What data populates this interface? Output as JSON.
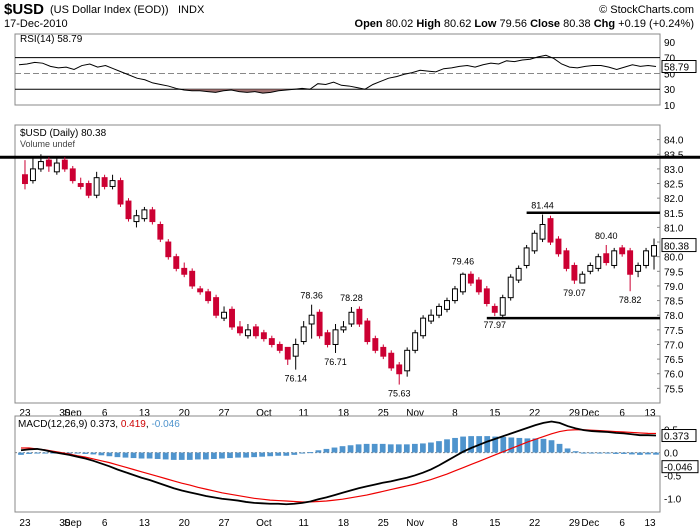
{
  "header": {
    "symbol": "$USD",
    "name": "(US Dollar Index (EOD))",
    "exchange": "INDX",
    "date": "17-Dec-2010",
    "copyright": "© StockCharts.com",
    "quote": {
      "open_label": "Open",
      "open": "80.02",
      "high_label": "High",
      "high": "80.62",
      "low_label": "Low",
      "low": "79.56",
      "close_label": "Close",
      "close": "80.38",
      "chg_label": "Chg",
      "chg": "+0.19 (+0.24%)"
    }
  },
  "colors": {
    "up": "#000000",
    "down": "#cc0033",
    "rsi_fill": "#a07070",
    "macd_line": "#000000",
    "signal_line": "#ee0000",
    "hist": "#4f94cd"
  },
  "chart_data": [
    {
      "type": "line",
      "title": "RSI(14) 58.79",
      "indicator": "RSI(14)",
      "last_value": "58.79",
      "ylim": [
        10,
        100
      ],
      "ticks": [
        "90",
        "70",
        "50",
        "30",
        "10"
      ],
      "levels": [
        70,
        30
      ],
      "values": [
        61,
        62,
        64,
        63,
        59,
        57,
        58,
        55,
        60,
        62,
        58,
        60,
        56,
        52,
        48,
        44,
        42,
        38,
        36,
        34,
        31,
        29,
        28,
        28,
        27,
        26,
        28,
        29,
        27,
        26,
        27,
        25,
        26,
        28,
        29,
        30,
        31,
        30,
        37,
        36,
        39,
        35,
        34,
        32,
        30,
        36,
        40,
        44,
        46,
        49,
        51,
        54,
        53,
        52,
        56,
        57,
        59,
        60,
        58,
        61,
        63,
        62,
        66,
        65,
        67,
        68,
        71,
        73,
        69,
        62,
        58,
        57,
        59,
        60,
        60,
        58,
        55,
        58,
        61,
        59,
        60,
        58.79
      ],
      "last_label": "58.79"
    },
    {
      "type": "candlestick",
      "title": "$USD (Daily) 80.38",
      "subtitle": "Volume undef",
      "ylim": [
        75,
        84.5
      ],
      "y_ticks": [
        84.0,
        83.5,
        83.0,
        82.5,
        82.0,
        81.5,
        81.0,
        80.5,
        80.0,
        79.5,
        79.0,
        78.5,
        78.0,
        77.5,
        77.0,
        76.5,
        76.0,
        75.5
      ],
      "x_ticks": [
        "23",
        "30",
        "Sep",
        "6",
        "13",
        "20",
        "27",
        "Oct",
        "11",
        "18",
        "25",
        "Nov",
        "8",
        "15",
        "22",
        "29",
        "Dec",
        "6",
        "13"
      ],
      "last_value": "80.38",
      "annotations": [
        "81.44",
        "80.40",
        "79.46",
        "79.07",
        "78.82",
        "78.36",
        "78.28",
        "77.97",
        "76.71",
        "76.14",
        "75.63"
      ],
      "horizontal_lines": [
        83.4,
        81.5,
        77.9
      ],
      "close": [
        82.5,
        83.0,
        83.25,
        83.1,
        83.2,
        83.0,
        82.6,
        82.4,
        82.1,
        82.7,
        82.4,
        82.6,
        81.8,
        81.3,
        81.4,
        81.6,
        81.2,
        80.6,
        80.0,
        79.6,
        79.4,
        79.0,
        78.8,
        78.5,
        78.0,
        78.1,
        77.6,
        77.4,
        77.5,
        77.3,
        77.2,
        77.0,
        76.8,
        76.5,
        77.0,
        77.6,
        78.0,
        77.3,
        77.0,
        77.5,
        77.6,
        78.1,
        77.7,
        77.1,
        76.8,
        76.6,
        76.2,
        76.0,
        76.8,
        77.4,
        77.9,
        78.0,
        78.3,
        78.5,
        78.9,
        79.4,
        79.1,
        78.8,
        78.4,
        78.1,
        78.6,
        79.3,
        79.6,
        80.3,
        80.8,
        81.1,
        80.5,
        80.1,
        79.6,
        79.2,
        79.4,
        79.7,
        80.0,
        79.8,
        80.2,
        80.1,
        79.4,
        79.7,
        80.2,
        80.38
      ],
      "open": [
        82.8,
        82.6,
        83.0,
        83.3,
        82.9,
        83.3,
        83.0,
        82.5,
        82.5,
        82.1,
        82.7,
        82.4,
        82.6,
        81.9,
        81.2,
        81.3,
        81.6,
        81.1,
        80.5,
        80.0,
        79.6,
        79.5,
        78.9,
        78.8,
        78.6,
        77.9,
        78.2,
        77.6,
        77.3,
        77.6,
        77.4,
        77.2,
        77.0,
        76.9,
        76.6,
        77.1,
        77.7,
        78.1,
        77.4,
        77.0,
        77.5,
        77.7,
        78.2,
        77.8,
        77.2,
        76.9,
        76.7,
        76.3,
        76.1,
        76.8,
        77.3,
        77.8,
        78.0,
        78.2,
        78.5,
        78.8,
        79.4,
        79.2,
        78.9,
        78.3,
        78.0,
        78.6,
        79.2,
        79.7,
        80.2,
        80.6,
        81.3,
        80.6,
        80.2,
        79.7,
        79.1,
        79.5,
        79.6,
        80.1,
        79.7,
        80.3,
        80.2,
        79.5,
        79.7,
        80.02
      ],
      "high": [
        83.3,
        83.4,
        83.5,
        83.4,
        83.4,
        83.4,
        83.1,
        82.7,
        82.6,
        82.9,
        82.8,
        82.8,
        82.7,
        82.0,
        81.6,
        81.7,
        81.7,
        81.2,
        80.6,
        80.1,
        79.8,
        79.6,
        79.0,
        78.9,
        78.7,
        78.3,
        78.3,
        77.8,
        77.7,
        77.7,
        77.5,
        77.3,
        77.1,
        76.9,
        77.2,
        77.8,
        78.36,
        78.2,
        77.5,
        77.7,
        77.8,
        78.28,
        78.3,
        77.9,
        77.3,
        77.0,
        76.8,
        76.4,
        76.9,
        77.5,
        78.0,
        78.2,
        78.4,
        78.6,
        79.0,
        79.46,
        79.5,
        79.3,
        79.0,
        78.4,
        78.7,
        79.4,
        79.7,
        80.4,
        80.9,
        81.44,
        81.4,
        80.7,
        80.3,
        79.8,
        79.5,
        79.8,
        80.1,
        80.4,
        80.3,
        80.4,
        80.3,
        79.8,
        80.3,
        80.62
      ],
      "low": [
        82.3,
        82.5,
        82.9,
        82.9,
        82.8,
        82.9,
        82.5,
        82.3,
        82.0,
        82.0,
        82.3,
        82.3,
        81.7,
        81.2,
        81.0,
        81.2,
        81.1,
        80.5,
        79.9,
        79.5,
        79.3,
        78.9,
        78.7,
        78.4,
        77.9,
        77.8,
        77.5,
        77.3,
        77.2,
        77.2,
        77.1,
        76.9,
        76.7,
        76.3,
        76.14,
        77.0,
        77.2,
        77.2,
        76.9,
        76.71,
        77.4,
        77.6,
        77.6,
        77.0,
        76.7,
        76.5,
        76.1,
        75.63,
        75.9,
        76.7,
        77.2,
        77.7,
        77.9,
        78.1,
        78.4,
        78.7,
        79.0,
        78.7,
        78.3,
        77.97,
        77.9,
        78.5,
        79.1,
        79.6,
        80.1,
        80.5,
        80.4,
        80.0,
        79.5,
        79.07,
        79.1,
        79.4,
        79.5,
        79.7,
        79.6,
        80.0,
        78.82,
        79.3,
        79.6,
        79.56
      ]
    },
    {
      "type": "line",
      "title": "MACD(12,26,9) 0.373, 0.419, -0.046",
      "indicator_label": "MACD(12,26,9)",
      "macd_value": "0.373",
      "signal_value": "0.419",
      "hist_value": "-0.046",
      "ylim": [
        -1.3,
        0.8
      ],
      "y_ticks": [
        "0.5",
        "0.0",
        "-0.5",
        "-1.0"
      ],
      "x_ticks": [
        "23",
        "30",
        "Sep",
        "6",
        "13",
        "20",
        "27",
        "Oct",
        "11",
        "18",
        "25",
        "Nov",
        "8",
        "15",
        "22",
        "29",
        "Dec",
        "6",
        "13"
      ],
      "series": [
        {
          "name": "MACD",
          "values": [
            0.05,
            0.07,
            0.08,
            0.05,
            0.01,
            -0.02,
            -0.05,
            -0.09,
            -0.13,
            -0.18,
            -0.24,
            -0.3,
            -0.37,
            -0.43,
            -0.49,
            -0.55,
            -0.6,
            -0.66,
            -0.72,
            -0.78,
            -0.83,
            -0.87,
            -0.91,
            -0.95,
            -0.98,
            -1.01,
            -1.03,
            -1.05,
            -1.08,
            -1.1,
            -1.11,
            -1.12,
            -1.12,
            -1.13,
            -1.12,
            -1.1,
            -1.07,
            -1.02,
            -0.98,
            -0.93,
            -0.88,
            -0.83,
            -0.78,
            -0.74,
            -0.7,
            -0.66,
            -0.63,
            -0.59,
            -0.55,
            -0.5,
            -0.44,
            -0.37,
            -0.28,
            -0.18,
            -0.08,
            0.02,
            0.1,
            0.17,
            0.24,
            0.3,
            0.36,
            0.42,
            0.48,
            0.54,
            0.6,
            0.65,
            0.68,
            0.65,
            0.58,
            0.53,
            0.49,
            0.47,
            0.46,
            0.45,
            0.43,
            0.42,
            0.4,
            0.38,
            0.38,
            0.373
          ]
        },
        {
          "name": "Signal",
          "values": [
            0.1,
            0.1,
            0.08,
            0.06,
            0.03,
            0.0,
            -0.03,
            -0.07,
            -0.1,
            -0.14,
            -0.18,
            -0.22,
            -0.27,
            -0.32,
            -0.37,
            -0.42,
            -0.47,
            -0.52,
            -0.57,
            -0.62,
            -0.67,
            -0.71,
            -0.76,
            -0.8,
            -0.84,
            -0.88,
            -0.91,
            -0.94,
            -0.97,
            -1.0,
            -1.02,
            -1.04,
            -1.05,
            -1.06,
            -1.07,
            -1.08,
            -1.08,
            -1.07,
            -1.06,
            -1.04,
            -1.02,
            -0.99,
            -0.96,
            -0.93,
            -0.89,
            -0.85,
            -0.81,
            -0.77,
            -0.73,
            -0.69,
            -0.64,
            -0.59,
            -0.53,
            -0.47,
            -0.4,
            -0.33,
            -0.26,
            -0.19,
            -0.12,
            -0.05,
            0.02,
            0.09,
            0.16,
            0.23,
            0.29,
            0.35,
            0.41,
            0.46,
            0.49,
            0.5,
            0.5,
            0.49,
            0.48,
            0.47,
            0.46,
            0.45,
            0.44,
            0.43,
            0.42,
            0.419
          ]
        },
        {
          "name": "Histogram",
          "values": [
            -0.05,
            -0.03,
            0.0,
            -0.01,
            -0.02,
            -0.02,
            -0.02,
            -0.02,
            -0.03,
            -0.04,
            -0.06,
            -0.08,
            -0.1,
            -0.11,
            -0.12,
            -0.13,
            -0.13,
            -0.14,
            -0.15,
            -0.16,
            -0.16,
            -0.16,
            -0.15,
            -0.15,
            -0.14,
            -0.13,
            -0.12,
            -0.11,
            -0.11,
            -0.1,
            -0.09,
            -0.08,
            -0.07,
            -0.07,
            -0.05,
            -0.02,
            0.01,
            0.05,
            0.08,
            0.11,
            0.14,
            0.16,
            0.18,
            0.19,
            0.19,
            0.19,
            0.18,
            0.18,
            0.18,
            0.19,
            0.2,
            0.22,
            0.25,
            0.29,
            0.32,
            0.35,
            0.36,
            0.36,
            0.36,
            0.35,
            0.34,
            0.33,
            0.32,
            0.31,
            0.31,
            0.3,
            0.27,
            0.19,
            0.09,
            0.03,
            -0.01,
            -0.02,
            -0.02,
            -0.02,
            -0.03,
            -0.03,
            -0.04,
            -0.05,
            -0.04,
            -0.046
          ]
        }
      ],
      "last_label": "0.373",
      "last_signal_label": "-0.046"
    }
  ]
}
